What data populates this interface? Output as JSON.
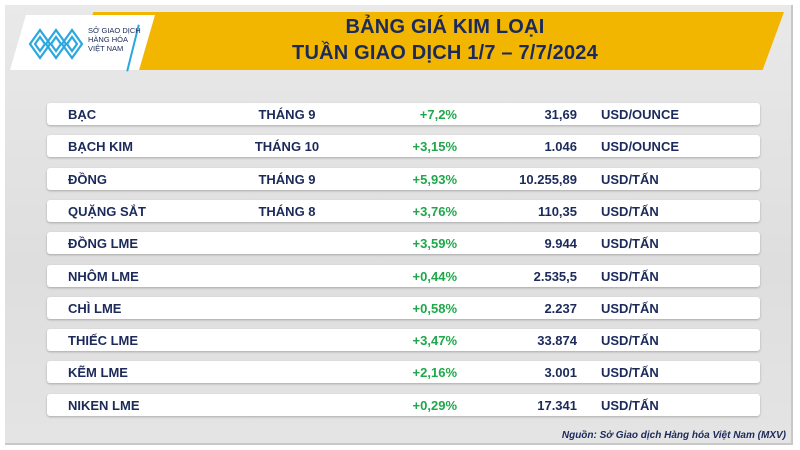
{
  "header": {
    "title_line1": "BẢNG GIÁ KIM LOẠI",
    "title_line2": "TUẦN GIAO DỊCH 1/7 – 7/7/2024",
    "accent": "#f2b600"
  },
  "logo": {
    "line1": "SỞ GIAO DỊCH",
    "line2": "HÀNG HÓA",
    "line3": "VIỆT NAM"
  },
  "rows": [
    {
      "name": "BẠC",
      "month": "THÁNG 9",
      "change": "+7,2%",
      "price": "31,69",
      "unit": "USD/OUNCE"
    },
    {
      "name": "BẠCH KIM",
      "month": "THÁNG 10",
      "change": "+3,15%",
      "price": "1.046",
      "unit": "USD/OUNCE"
    },
    {
      "name": "ĐỒNG",
      "month": "THÁNG 9",
      "change": "+5,93%",
      "price": "10.255,89",
      "unit": "USD/TẤN"
    },
    {
      "name": "QUẶNG SẮT",
      "month": "THÁNG 8",
      "change": "+3,76%",
      "price": "110,35",
      "unit": "USD/TẤN"
    },
    {
      "name": "ĐỒNG LME",
      "month": "",
      "change": "+3,59%",
      "price": "9.944",
      "unit": "USD/TẤN"
    },
    {
      "name": "NHÔM LME",
      "month": "",
      "change": "+0,44%",
      "price": "2.535,5",
      "unit": "USD/TẤN"
    },
    {
      "name": "CHÌ LME",
      "month": "",
      "change": "+0,58%",
      "price": "2.237",
      "unit": "USD/TẤN"
    },
    {
      "name": "THIẾC LME",
      "month": "",
      "change": "+3,47%",
      "price": "33.874",
      "unit": "USD/TẤN"
    },
    {
      "name": "KẼM LME",
      "month": "",
      "change": "+2,16%",
      "price": "3.001",
      "unit": "USD/TẤN"
    },
    {
      "name": "NIKEN LME",
      "month": "",
      "change": "+0,29%",
      "price": "17.341",
      "unit": "USD/TẤN"
    }
  ],
  "footer": {
    "source": "Nguồn: Sở Giao dịch Hàng hóa Việt Nam (MXV)"
  }
}
